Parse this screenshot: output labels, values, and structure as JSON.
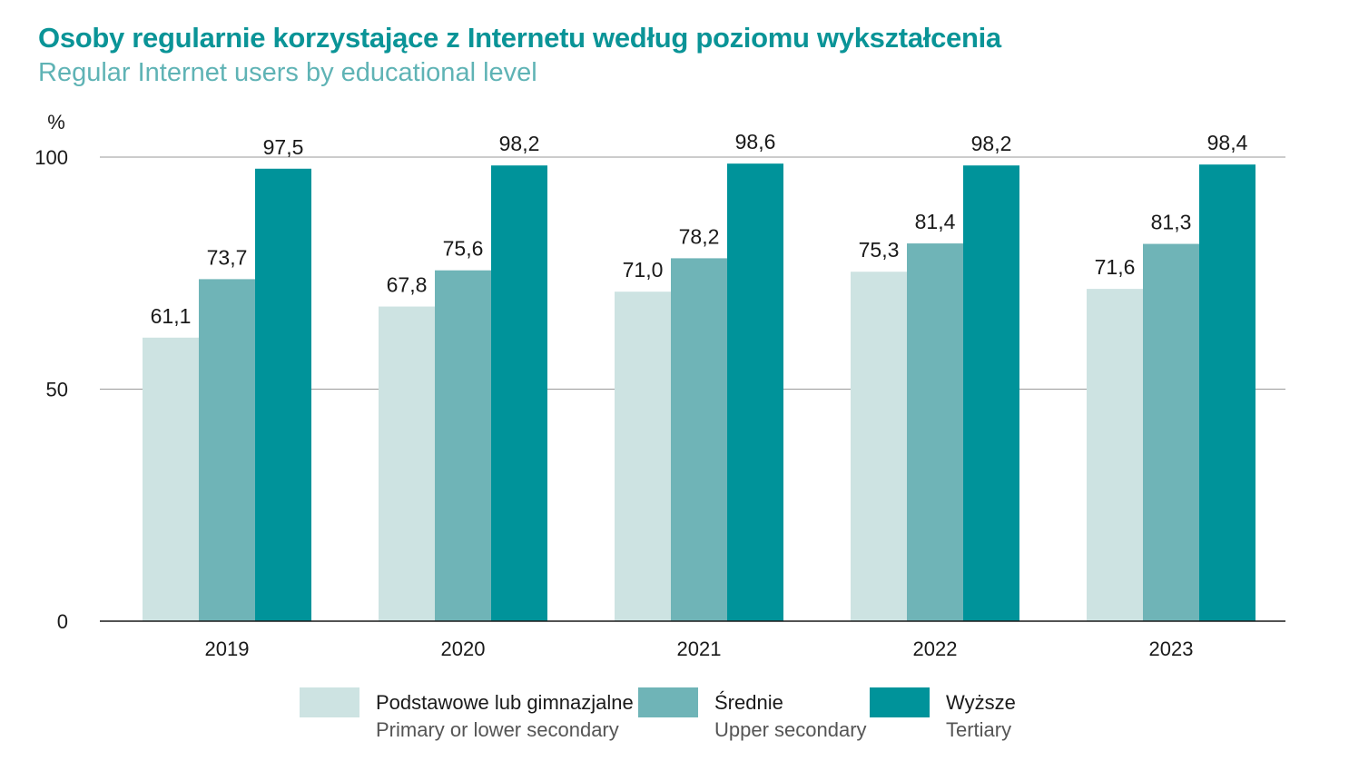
{
  "header": {
    "title": "Osoby regularnie korzystające z Internetu według poziomu wykształcenia",
    "subtitle": "Regular Internet users by educational level"
  },
  "chart_data": {
    "type": "bar",
    "title": "Osoby regularnie korzystające z Internetu według poziomu wykształcenia",
    "subtitle": "Regular Internet users by educational level",
    "unit": "%",
    "categories": [
      "2019",
      "2020",
      "2021",
      "2022",
      "2023"
    ],
    "series": [
      {
        "name": "Podstawowe lub gimnazjalne",
        "name_en": "Primary or lower secondary",
        "color": "#cde3e2",
        "values": [
          61.1,
          67.8,
          71.0,
          75.3,
          71.6
        ],
        "labels": [
          "61,1",
          "67,8",
          "71,0",
          "75,3",
          "71,6"
        ]
      },
      {
        "name": "Średnie",
        "name_en": "Upper secondary",
        "color": "#6fb4b7",
        "values": [
          73.7,
          75.6,
          78.2,
          81.4,
          81.3
        ],
        "labels": [
          "73,7",
          "75,6",
          "78,2",
          "81,4",
          "81,3"
        ]
      },
      {
        "name": "Wyższe",
        "name_en": "Tertiary",
        "color": "#00939a",
        "values": [
          97.5,
          98.2,
          98.6,
          98.2,
          98.4
        ],
        "labels": [
          "97,5",
          "98,2",
          "98,6",
          "98,2",
          "98,4"
        ]
      }
    ],
    "ylim": [
      0,
      100
    ],
    "yticks": [
      0,
      50,
      100
    ],
    "ytick_labels": [
      "0",
      "50",
      "100"
    ],
    "grid": true,
    "legend_position": "bottom",
    "gridline_color": "#9a9a9a",
    "axis_color": "#1a1a1a"
  }
}
